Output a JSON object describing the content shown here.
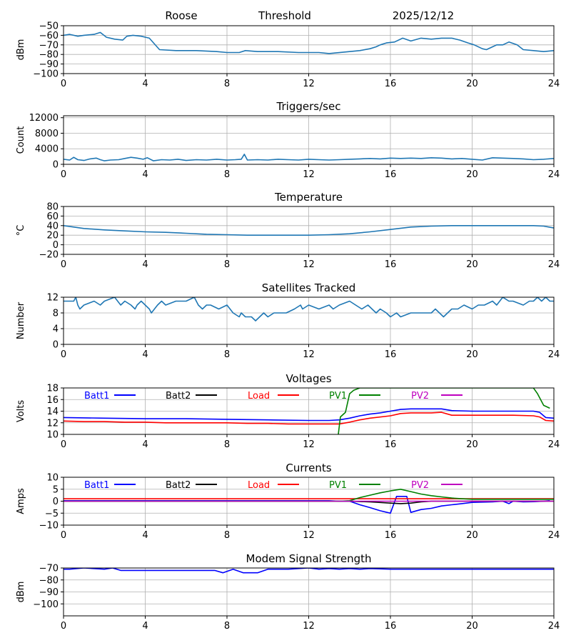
{
  "header": {
    "station": "Roose",
    "mode": "Threshold",
    "date": "2025/12/12"
  },
  "colors": {
    "tab_blue": "#1f77b4",
    "blue": "#0000ff",
    "black": "#000000",
    "red": "#ff0000",
    "green": "#008000",
    "magenta": "#bf00bf",
    "grid": "#b0b0b0"
  },
  "chart_data": [
    {
      "type": "line",
      "title": "",
      "ylabel": "dBm",
      "xlim": [
        0,
        24
      ],
      "xticks": [
        "0",
        "4",
        "8",
        "12",
        "16",
        "20",
        "24"
      ],
      "ylim": [
        -100,
        -50
      ],
      "yticks": [
        -100,
        -90,
        -80,
        -70,
        -60,
        -50
      ],
      "grid": true,
      "series": [
        {
          "color": "tab_blue",
          "x": [
            0,
            0.3,
            0.7,
            1,
            1.5,
            1.8,
            2.1,
            2.5,
            2.9,
            3.1,
            3.4,
            3.8,
            4.2,
            4.7,
            5.5,
            6.5,
            7.5,
            8,
            8.6,
            8.9,
            9.5,
            10.5,
            11.5,
            12.5,
            13,
            14,
            14.5,
            15,
            15.3,
            15.5,
            15.8,
            16.2,
            16.6,
            17,
            17.5,
            18,
            18.5,
            19,
            19.4,
            19.8,
            20.1,
            20.5,
            20.7,
            21,
            21.2,
            21.5,
            21.8,
            22.2,
            22.5,
            23,
            23.5,
            24
          ],
          "y": [
            -60,
            -59,
            -61,
            -60,
            -59,
            -57,
            -62,
            -64,
            -65,
            -61,
            -60,
            -61,
            -63,
            -75,
            -76,
            -76,
            -77,
            -78,
            -78,
            -76,
            -77,
            -77,
            -78,
            -78,
            -79,
            -77,
            -76,
            -74,
            -72,
            -70,
            -68,
            -67,
            -63,
            -66,
            -63,
            -64,
            -63,
            -63,
            -65,
            -68,
            -70,
            -74,
            -75,
            -72,
            -70,
            -70,
            -67,
            -70,
            -75,
            -76,
            -77,
            -76
          ]
        }
      ]
    },
    {
      "type": "line",
      "title": "Triggers/sec",
      "ylabel": "Count",
      "xlim": [
        0,
        24
      ],
      "xticks": [
        "0",
        "4",
        "8",
        "12",
        "16",
        "20",
        "24"
      ],
      "ylim": [
        0,
        12500
      ],
      "yticks": [
        0,
        4000,
        8000,
        12000
      ],
      "grid": true,
      "series": [
        {
          "color": "tab_blue",
          "x": [
            0,
            0.3,
            0.5,
            0.7,
            1,
            1.3,
            1.6,
            1.8,
            2,
            2.3,
            2.7,
            3,
            3.3,
            3.6,
            3.9,
            4.1,
            4.4,
            4.8,
            5.2,
            5.6,
            6,
            6.5,
            7,
            7.5,
            8,
            8.4,
            8.7,
            8.85,
            9,
            9.5,
            10,
            10.5,
            11,
            11.5,
            12,
            12.5,
            13,
            13.5,
            14,
            14.5,
            15,
            15.5,
            16,
            16.5,
            17,
            17.5,
            18,
            18.5,
            19,
            19.5,
            20,
            20.5,
            21,
            21.5,
            22,
            22.5,
            23,
            23.5,
            24
          ],
          "y": [
            1300,
            1100,
            1800,
            1200,
            1000,
            1400,
            1600,
            1200,
            900,
            1100,
            1200,
            1500,
            1800,
            1600,
            1300,
            1700,
            900,
            1200,
            1100,
            1300,
            1000,
            1200,
            1100,
            1300,
            1100,
            1200,
            1300,
            2600,
            1100,
            1200,
            1100,
            1300,
            1200,
            1100,
            1300,
            1200,
            1100,
            1200,
            1300,
            1400,
            1500,
            1400,
            1600,
            1500,
            1600,
            1500,
            1700,
            1600,
            1400,
            1500,
            1300,
            1100,
            1700,
            1600,
            1500,
            1400,
            1200,
            1300,
            1500
          ]
        }
      ]
    },
    {
      "type": "line",
      "title": "Temperature",
      "ylabel": "°C",
      "xlim": [
        0,
        24
      ],
      "xticks": [
        "0",
        "4",
        "8",
        "12",
        "16",
        "20",
        "24"
      ],
      "ylim": [
        -20,
        80
      ],
      "yticks": [
        -20,
        0,
        20,
        40,
        60,
        80
      ],
      "grid": true,
      "series": [
        {
          "color": "tab_blue",
          "x": [
            0,
            1,
            2,
            3,
            4,
            5,
            6,
            7,
            8,
            9,
            10,
            11,
            12,
            13,
            14,
            15,
            16,
            17,
            18,
            19,
            20,
            21,
            22,
            23,
            23.5,
            24
          ],
          "y": [
            40,
            34,
            31,
            29,
            27,
            26,
            24,
            22,
            21,
            20,
            20,
            20,
            20,
            21,
            23,
            27,
            32,
            37,
            39,
            40,
            40,
            40,
            40,
            40,
            39,
            35
          ]
        }
      ]
    },
    {
      "type": "line",
      "title": "Satellites Tracked",
      "ylabel": "Number",
      "xlim": [
        0,
        24
      ],
      "xticks": [
        "0",
        "4",
        "8",
        "12",
        "16",
        "20",
        "24"
      ],
      "ylim": [
        0,
        12
      ],
      "yticks": [
        0,
        4,
        8,
        12
      ],
      "grid": true,
      "series": [
        {
          "color": "tab_blue",
          "x": [
            0,
            0.5,
            0.6,
            0.7,
            0.8,
            1,
            1.5,
            1.8,
            2,
            2.5,
            2.8,
            3,
            3.3,
            3.5,
            3.6,
            3.8,
            4.2,
            4.3,
            4.6,
            4.8,
            5,
            5.5,
            6,
            6.4,
            6.6,
            6.8,
            7,
            7.2,
            7.6,
            8,
            8.3,
            8.6,
            8.7,
            8.9,
            9.2,
            9.4,
            9.6,
            9.8,
            10,
            10.3,
            10.6,
            10.9,
            11.3,
            11.6,
            11.7,
            12,
            12.5,
            13,
            13.2,
            13.5,
            14,
            14.3,
            14.6,
            14.9,
            15.1,
            15.3,
            15.5,
            15.8,
            16,
            16.3,
            16.5,
            17,
            17.5,
            18,
            18.2,
            18.4,
            18.6,
            18.8,
            19,
            19.3,
            19.6,
            20,
            20.3,
            20.6,
            21,
            21.2,
            21.5,
            21.8,
            22,
            22.5,
            22.8,
            23,
            23.2,
            23.4,
            23.6,
            23.8,
            24
          ],
          "y": [
            11,
            11,
            12,
            10,
            9,
            10,
            11,
            10,
            11,
            12,
            10,
            11,
            10,
            9,
            10,
            11,
            9,
            8,
            10,
            11,
            10,
            11,
            11,
            12,
            10,
            9,
            10,
            10,
            9,
            10,
            8,
            7,
            8,
            7,
            7,
            6,
            7,
            8,
            7,
            8,
            8,
            8,
            9,
            10,
            9,
            10,
            9,
            10,
            9,
            10,
            11,
            10,
            9,
            10,
            9,
            8,
            9,
            8,
            7,
            8,
            7,
            8,
            8,
            8,
            9,
            8,
            7,
            8,
            9,
            9,
            10,
            9,
            10,
            10,
            11,
            10,
            12,
            11,
            11,
            10,
            11,
            11,
            12,
            11,
            12,
            11,
            11
          ]
        }
      ]
    },
    {
      "type": "line",
      "title": "Voltages",
      "ylabel": "Volts",
      "xlim": [
        0,
        24
      ],
      "xticks": [
        "0",
        "4",
        "8",
        "12",
        "16",
        "20",
        "24"
      ],
      "ylim": [
        10,
        18
      ],
      "yticks": [
        10,
        12,
        14,
        16,
        18
      ],
      "grid": true,
      "legend": [
        {
          "name": "Batt1",
          "color": "blue"
        },
        {
          "name": "Batt2",
          "color": "black"
        },
        {
          "name": "Load",
          "color": "red"
        },
        {
          "name": "PV1",
          "color": "green"
        },
        {
          "name": "PV2",
          "color": "magenta"
        }
      ],
      "series": [
        {
          "name": "Batt1",
          "color": "blue",
          "x": [
            0,
            2,
            4,
            6,
            8,
            10,
            12,
            13,
            13.5,
            14,
            14.5,
            15,
            15.5,
            16,
            16.5,
            17,
            18,
            18.5,
            19,
            20,
            21,
            22,
            23,
            23.3,
            23.6,
            24
          ],
          "y": [
            12.9,
            12.8,
            12.7,
            12.7,
            12.6,
            12.5,
            12.4,
            12.4,
            12.5,
            12.8,
            13.2,
            13.5,
            13.7,
            14,
            14.3,
            14.4,
            14.4,
            14.4,
            14.1,
            14,
            14,
            14,
            14,
            13.8,
            12.9,
            12.8
          ]
        },
        {
          "name": "Load",
          "color": "red",
          "x": [
            0,
            1,
            2,
            3,
            4,
            5,
            6,
            7,
            8,
            9,
            10,
            11,
            12,
            13,
            13.5,
            14,
            14.5,
            15,
            16,
            16.5,
            17,
            18,
            18.5,
            19,
            20,
            21,
            22,
            23,
            23.3,
            23.6,
            24
          ],
          "y": [
            12.3,
            12.2,
            12.2,
            12.1,
            12.1,
            12,
            12,
            12,
            12,
            11.9,
            11.9,
            11.8,
            11.8,
            11.8,
            11.8,
            12.1,
            12.5,
            12.8,
            13.2,
            13.6,
            13.7,
            13.7,
            13.8,
            13.3,
            13.3,
            13.3,
            13.3,
            13.2,
            13,
            12.4,
            12.3
          ]
        },
        {
          "name": "PV1",
          "color": "green",
          "x": [
            13.45,
            13.55,
            13.8,
            14,
            14.2,
            14.5,
            15,
            15.5,
            16,
            16.5,
            17,
            18,
            19,
            20,
            21,
            22,
            22.8,
            23,
            23.2,
            23.5,
            23.8
          ],
          "y": [
            10,
            13,
            13.8,
            17,
            17.6,
            18,
            18,
            18,
            18,
            18,
            18,
            18,
            18,
            18,
            18,
            18,
            18,
            18,
            17,
            15,
            14.5
          ]
        }
      ]
    },
    {
      "type": "line",
      "title": "Currents",
      "ylabel": "Amps",
      "xlim": [
        0,
        24
      ],
      "xticks": [
        "0",
        "4",
        "8",
        "12",
        "16",
        "20",
        "24"
      ],
      "ylim": [
        -10,
        10
      ],
      "yticks": [
        -10,
        -5,
        0,
        5,
        10
      ],
      "grid": true,
      "legend": [
        {
          "name": "Batt1",
          "color": "blue"
        },
        {
          "name": "Batt2",
          "color": "black"
        },
        {
          "name": "Load",
          "color": "red"
        },
        {
          "name": "PV1",
          "color": "green"
        },
        {
          "name": "PV2",
          "color": "magenta"
        }
      ],
      "series": [
        {
          "name": "Batt1",
          "color": "blue",
          "x": [
            0,
            4,
            8,
            12,
            13,
            13.5,
            14,
            14.5,
            15,
            15.5,
            16,
            16.3,
            16.8,
            17,
            17.5,
            18,
            18.5,
            19,
            19.5,
            20,
            21,
            21.5,
            21.8,
            22,
            22.5,
            23,
            23.5,
            23.8
          ],
          "y": [
            0.2,
            0.2,
            0.2,
            0.2,
            0.2,
            0,
            0,
            -1.5,
            -2.7,
            -4,
            -5,
            2,
            2,
            -4.7,
            -3.5,
            -3,
            -2,
            -1.5,
            -1,
            -0.5,
            -0.3,
            0,
            -1,
            0,
            -0.3,
            -0.2,
            0,
            0.2
          ]
        },
        {
          "name": "Batt2",
          "color": "black",
          "x": [
            0,
            8,
            13,
            14,
            15,
            16,
            16.5,
            17,
            17.5,
            18,
            19,
            20,
            22,
            24
          ],
          "y": [
            0,
            0,
            0,
            0,
            -0.3,
            -0.8,
            -1,
            -0.8,
            -0.3,
            0,
            0,
            0,
            0,
            0
          ]
        },
        {
          "name": "Load",
          "color": "red",
          "x": [
            0,
            4,
            8,
            12,
            14,
            16,
            18,
            20,
            22,
            24
          ],
          "y": [
            1,
            1,
            1,
            1,
            1,
            1,
            1,
            1,
            1,
            1
          ]
        },
        {
          "name": "PV1",
          "color": "green",
          "x": [
            0,
            8,
            13.5,
            14,
            14.5,
            15,
            15.5,
            16,
            16.5,
            17,
            17.5,
            18,
            18.5,
            19,
            19.5,
            20,
            22,
            24
          ],
          "y": [
            0,
            0,
            0,
            0.2,
            1.5,
            2.5,
            3.5,
            4.3,
            5,
            4,
            3,
            2.3,
            1.8,
            1.3,
            1,
            0.8,
            0.8,
            0.8
          ]
        },
        {
          "name": "PV2",
          "color": "magenta",
          "x": [
            0,
            24
          ],
          "y": [
            0,
            0
          ]
        }
      ]
    },
    {
      "type": "line",
      "title": "Modem Signal Strength",
      "ylabel": "dBm",
      "xlim": [
        0,
        24
      ],
      "xticks": [
        "0",
        "4",
        "8",
        "12",
        "16",
        "20",
        "24"
      ],
      "ylim": [
        -110,
        -70
      ],
      "yticks": [
        -100,
        -90,
        -80,
        -70
      ],
      "grid": true,
      "series": [
        {
          "color": "blue",
          "x": [
            0,
            0.3,
            1,
            2,
            2.4,
            2.8,
            3,
            4,
            5,
            6,
            7,
            7.4,
            7.8,
            8.3,
            8.8,
            9,
            9.5,
            10,
            11,
            12,
            12.5,
            13,
            13.5,
            14,
            14.5,
            15,
            16,
            17,
            18,
            20,
            22,
            24
          ],
          "y": [
            -71,
            -71,
            -70,
            -71,
            -70,
            -72,
            -72,
            -72,
            -72,
            -72,
            -72,
            -72,
            -74,
            -71,
            -74,
            -74,
            -74,
            -71,
            -71,
            -70,
            -71,
            -70.5,
            -71,
            -70.5,
            -71,
            -70.5,
            -71,
            -71,
            -71,
            -71,
            -71,
            -71
          ]
        }
      ]
    }
  ]
}
